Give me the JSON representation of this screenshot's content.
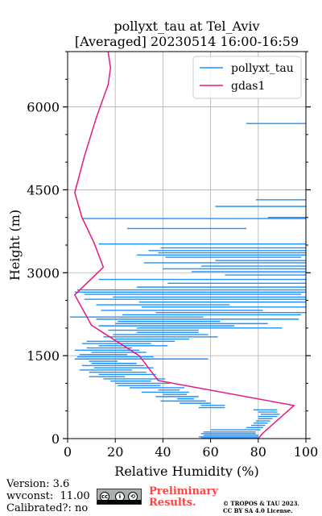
{
  "chart_data": {
    "type": "line",
    "title": "pollyxt_tau at Tel_Aviv",
    "subtitle": "[Averaged] 20230514 16:00-16:59",
    "xlabel": "Relative Humidity (%)",
    "ylabel": "Height (m)",
    "xlim": [
      0,
      100
    ],
    "ylim": [
      0,
      7000
    ],
    "xticks": [
      0,
      20,
      40,
      60,
      80,
      100
    ],
    "yticks": [
      0,
      1500,
      3000,
      4500,
      6000
    ],
    "grid": true,
    "legend_position": "top-right",
    "series": [
      {
        "name": "pollyxt_tau",
        "color": "#1e90ff",
        "segments": [
          [
            5700,
            75,
            100
          ],
          [
            4320,
            79,
            100
          ],
          [
            4200,
            62,
            100
          ],
          [
            4000,
            84,
            100
          ],
          [
            3980,
            6,
            100
          ],
          [
            3800,
            25,
            75
          ],
          [
            3520,
            13,
            100
          ],
          [
            3450,
            39,
            100
          ],
          [
            3400,
            34,
            100
          ],
          [
            3360,
            38,
            100
          ],
          [
            3320,
            29,
            100
          ],
          [
            3280,
            41,
            98
          ],
          [
            3220,
            62,
            100
          ],
          [
            3180,
            32,
            100
          ],
          [
            3120,
            56,
            100
          ],
          [
            3070,
            40,
            100
          ],
          [
            3020,
            52,
            100
          ],
          [
            2960,
            66,
            100
          ],
          [
            2880,
            13,
            100
          ],
          [
            2810,
            42,
            100
          ],
          [
            2740,
            29,
            100
          ],
          [
            2690,
            4,
            100
          ],
          [
            2650,
            3,
            100
          ],
          [
            2610,
            7,
            98
          ],
          [
            2560,
            19,
            100
          ],
          [
            2520,
            7,
            100
          ],
          [
            2470,
            30,
            100
          ],
          [
            2420,
            12,
            68
          ],
          [
            2380,
            31,
            100
          ],
          [
            2320,
            14,
            82
          ],
          [
            2280,
            37,
            100
          ],
          [
            2240,
            23,
            98
          ],
          [
            2200,
            1,
            57
          ],
          [
            2160,
            12,
            97
          ],
          [
            2120,
            21,
            64
          ],
          [
            2080,
            20,
            84
          ],
          [
            2040,
            13,
            70
          ],
          [
            2000,
            29,
            90
          ],
          [
            1960,
            17,
            55
          ],
          [
            1920,
            29,
            55
          ],
          [
            1880,
            19,
            59
          ],
          [
            1840,
            15,
            63
          ],
          [
            1800,
            20,
            51
          ],
          [
            1760,
            8,
            45
          ],
          [
            1720,
            6,
            35
          ],
          [
            1680,
            13,
            42
          ],
          [
            1640,
            8,
            27
          ],
          [
            1600,
            3,
            30
          ],
          [
            1560,
            10,
            33
          ],
          [
            1520,
            5,
            25
          ],
          [
            1480,
            4,
            36
          ],
          [
            1440,
            3,
            59
          ],
          [
            1400,
            9,
            21
          ],
          [
            1360,
            10,
            29
          ],
          [
            1320,
            6,
            32
          ],
          [
            1280,
            11,
            36
          ],
          [
            1240,
            5,
            27
          ],
          [
            1200,
            9,
            33
          ],
          [
            1160,
            13,
            37
          ],
          [
            1120,
            9,
            24
          ],
          [
            1080,
            15,
            41
          ],
          [
            1040,
            18,
            35
          ],
          [
            1000,
            20,
            43
          ],
          [
            960,
            21,
            39
          ],
          [
            920,
            26,
            49
          ],
          [
            880,
            38,
            47
          ],
          [
            840,
            31,
            51
          ],
          [
            800,
            40,
            50
          ],
          [
            760,
            37,
            55
          ],
          [
            720,
            46,
            53
          ],
          [
            680,
            39,
            58
          ],
          [
            640,
            47,
            60
          ],
          [
            600,
            56,
            66
          ],
          [
            560,
            55,
            66
          ],
          [
            520,
            78,
            88
          ],
          [
            480,
            80,
            88
          ],
          [
            440,
            81,
            89
          ],
          [
            400,
            80,
            88
          ],
          [
            360,
            80,
            86
          ],
          [
            320,
            79,
            85
          ],
          [
            280,
            78,
            84
          ],
          [
            240,
            77,
            83
          ],
          [
            200,
            75,
            82
          ],
          [
            160,
            60,
            81
          ],
          [
            120,
            57,
            79
          ],
          [
            90,
            56,
            79
          ],
          [
            60,
            57,
            80
          ],
          [
            30,
            55,
            80
          ],
          [
            10,
            56,
            80
          ]
        ]
      },
      {
        "name": "gdas1",
        "color": "#e6197d",
        "points": [
          [
            80,
            0
          ],
          [
            82,
            100
          ],
          [
            95,
            600
          ],
          [
            38,
            1050
          ],
          [
            30,
            1500
          ],
          [
            10,
            2050
          ],
          [
            3,
            2600
          ],
          [
            15,
            3100
          ],
          [
            11,
            3550
          ],
          [
            6,
            4000
          ],
          [
            3,
            4450
          ],
          [
            7,
            5100
          ],
          [
            12,
            5800
          ],
          [
            17,
            6400
          ],
          [
            18,
            6700
          ],
          [
            17,
            7000
          ]
        ]
      }
    ]
  },
  "footer": {
    "version": "Version: 3.6",
    "wvconst": "wvconst:  11.00",
    "calibrated": "Calibrated?: no",
    "preliminary_line1": "Preliminary",
    "preliminary_line2": "Results.",
    "copyright_line1": "© TROPOS & TAU 2023.",
    "copyright_line2": "CC BY SA 4.0 License.",
    "cc_badge_text": "cc",
    "cc_by_text": "i",
    "cc_sa_text": "⟲"
  }
}
